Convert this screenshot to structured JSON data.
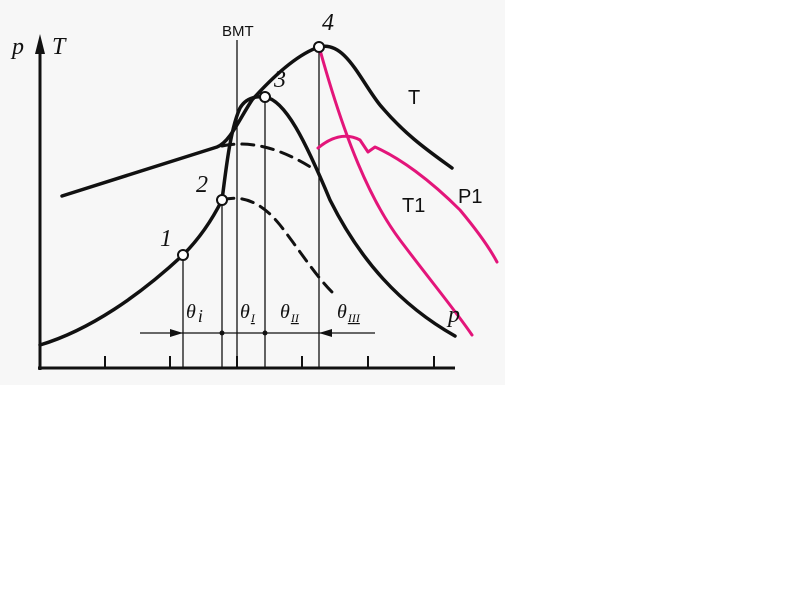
{
  "diagram": {
    "axis_labels": {
      "y_p": "p",
      "y_T": "T",
      "x_p": "p"
    },
    "tdc_label": "ВМТ",
    "points": [
      "1",
      "2",
      "3",
      "4"
    ],
    "thetas": {
      "i": "θ",
      "i_sub": "i",
      "I": "θ",
      "I_sub": "I",
      "II": "θ",
      "II_sub": "II",
      "III": "θ",
      "III_sub": "III"
    },
    "curve_labels": {
      "T": "T",
      "T1": "T1",
      "P1": "P1"
    },
    "colors": {
      "ink": "#111111",
      "highlight": "#e3157a",
      "panel": "#f4f4f4"
    }
  }
}
